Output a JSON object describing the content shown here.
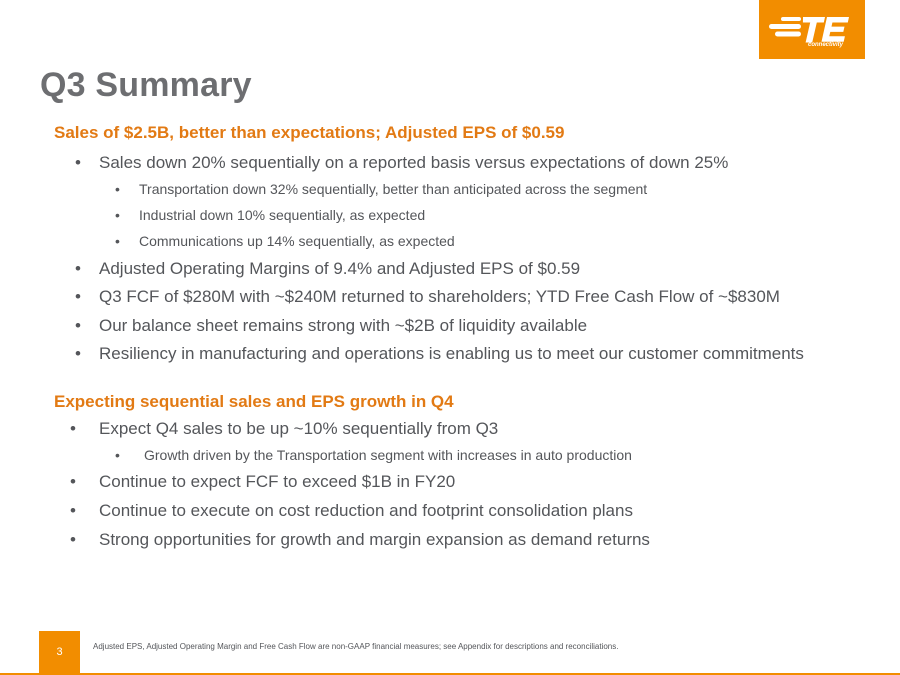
{
  "slide": {
    "title": "Q3 Summary",
    "logo": {
      "name": "TE connectivity",
      "brand_color": "#f28d00"
    },
    "section1": {
      "heading": "Sales of $2.5B, better than expectations; Adjusted EPS of $0.59",
      "bullets": [
        "Sales down 20% sequentially on a reported basis versus expectations of down 25%",
        "Transportation down 32% sequentially, better than anticipated across the segment",
        "Industrial down 10% sequentially, as expected",
        "Communications up 14% sequentially, as expected",
        "Adjusted Operating Margins of 9.4% and Adjusted EPS of $0.59",
        "Q3 FCF of $280M with ~$240M returned to shareholders; YTD Free Cash Flow of ~$830M",
        "Our balance sheet remains strong with ~$2B of liquidity available",
        "Resiliency in manufacturing and operations is enabling us to meet our customer commitments"
      ]
    },
    "section2": {
      "heading": "Expecting sequential sales and EPS growth in Q4",
      "bullets": [
        "Expect Q4 sales to be up ~10% sequentially from Q3",
        "Growth driven by the Transportation segment with increases in auto production",
        "Continue to expect FCF to exceed $1B in FY20",
        "Continue to execute on cost reduction and footprint consolidation plans",
        "Strong opportunities for growth and margin expansion as demand returns"
      ]
    },
    "bullet_glyph": "•",
    "page_number": "3",
    "footnote": "Adjusted EPS, Adjusted Operating Margin and Free Cash Flow are non-GAAP financial measures; see Appendix for descriptions and reconciliations.",
    "colors": {
      "heading": "#e27a14",
      "title": "#6d6e71",
      "body": "#54565a",
      "accent": "#f28d00"
    }
  }
}
